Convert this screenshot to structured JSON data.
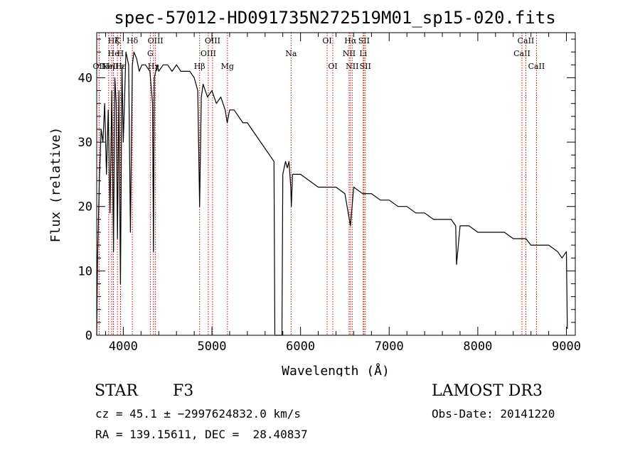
{
  "chart_data": {
    "type": "line",
    "title": "spec-57012-HD091735N272519M01_sp15-020.fits",
    "xlabel": "Wavelength (Å)",
    "ylabel": "Flux (relative)",
    "xlim": [
      3700,
      9100
    ],
    "ylim": [
      0,
      47
    ],
    "xticks": [
      4000,
      5000,
      6000,
      7000,
      8000,
      9000
    ],
    "xtick_labels": [
      "4000",
      "5000",
      "6000",
      "7000",
      "8000",
      "9000"
    ],
    "yticks": [
      0,
      10,
      20,
      30,
      40
    ],
    "ytick_labels": [
      "0",
      "10",
      "20",
      "30",
      "40"
    ],
    "series": [
      {
        "name": "flux",
        "x": [
          3700,
          3710,
          3730,
          3750,
          3770,
          3790,
          3810,
          3830,
          3850,
          3870,
          3889,
          3905,
          3920,
          3934,
          3950,
          3968,
          3985,
          4000,
          4030,
          4060,
          4080,
          4102,
          4120,
          4150,
          4180,
          4210,
          4250,
          4300,
          4330,
          4340,
          4350,
          4383,
          4400,
          4450,
          4500,
          4550,
          4600,
          4650,
          4700,
          4750,
          4800,
          4840,
          4861,
          4880,
          4900,
          4950,
          5000,
          5050,
          5100,
          5150,
          5172,
          5200,
          5250,
          5300,
          5350,
          5400,
          5450,
          5500,
          5550,
          5600,
          5650,
          5700,
          5710,
          5720,
          5760,
          5790,
          5800,
          5830,
          5850,
          5870,
          5890,
          5896,
          5910,
          5950,
          6000,
          6100,
          6200,
          6300,
          6400,
          6500,
          6563,
          6600,
          6700,
          6800,
          6900,
          7000,
          7100,
          7200,
          7300,
          7400,
          7500,
          7600,
          7700,
          7750,
          7760,
          7800,
          7900,
          8000,
          8100,
          8200,
          8300,
          8400,
          8500,
          8542,
          8600,
          8700,
          8800,
          8900,
          8950,
          9000,
          9010
        ],
        "y": [
          0,
          12,
          24,
          32,
          30,
          36,
          25,
          35,
          19,
          38,
          13,
          40,
          36,
          15,
          38,
          8,
          42,
          30,
          44,
          42,
          16,
          42,
          44,
          43,
          41,
          42,
          42,
          41,
          36,
          13,
          40,
          42,
          41,
          42,
          42,
          41,
          42,
          41,
          41,
          41,
          40,
          38,
          20,
          37,
          39,
          37,
          38,
          36,
          37,
          35,
          33,
          35,
          35,
          34,
          33,
          33,
          32,
          31,
          30,
          29,
          28,
          27,
          0,
          0,
          0,
          0,
          25,
          27,
          26,
          27,
          23,
          20,
          25,
          25,
          25,
          24,
          23,
          23,
          23,
          22,
          17,
          23,
          22,
          22,
          21,
          21,
          20,
          20,
          19,
          19,
          18,
          18,
          18,
          17,
          11,
          17,
          17,
          16,
          16,
          16,
          16,
          15,
          15,
          15,
          14,
          14,
          14,
          13,
          12,
          13,
          1
        ]
      }
    ],
    "lines": [
      {
        "name": "OII",
        "x": 3727,
        "level": 3
      },
      {
        "name": "Hη",
        "x": 3835,
        "level": 3
      },
      {
        "name": "Hζ",
        "x": 3889,
        "level": 1
      },
      {
        "name": "He",
        "x": 3889,
        "level": 2
      },
      {
        "name": "NeIII",
        "x": 3869,
        "level": 3
      },
      {
        "name": "K",
        "x": 3934,
        "level": 1
      },
      {
        "name": "H",
        "x": 3968,
        "level": 2
      },
      {
        "name": "Hε",
        "x": 3970,
        "level": 3
      },
      {
        "name": "Hδ",
        "x": 4102,
        "level": 1
      },
      {
        "name": "G",
        "x": 4305,
        "level": 2
      },
      {
        "name": "Hγ",
        "x": 4341,
        "level": 3
      },
      {
        "name": "OIII",
        "x": 4363,
        "level": 1
      },
      {
        "name": "Hβ",
        "x": 4861,
        "level": 3
      },
      {
        "name": "OIII",
        "x": 4959,
        "level": 2
      },
      {
        "name": "OIII",
        "x": 5007,
        "level": 1
      },
      {
        "name": "Mg",
        "x": 5175,
        "level": 3
      },
      {
        "name": "Na",
        "x": 5893,
        "level": 2
      },
      {
        "name": "OI",
        "x": 6300,
        "level": 1
      },
      {
        "name": "OI",
        "x": 6364,
        "level": 3
      },
      {
        "name": "NII",
        "x": 6548,
        "level": 2
      },
      {
        "name": "NII",
        "x": 6583,
        "level": 3
      },
      {
        "name": "Hα",
        "x": 6563,
        "level": 1
      },
      {
        "name": "SII",
        "x": 6716,
        "level": 1
      },
      {
        "name": "SII",
        "x": 6731,
        "level": 3
      },
      {
        "name": "Li",
        "x": 6707,
        "level": 2
      },
      {
        "name": "CaII",
        "x": 8498,
        "level": 2
      },
      {
        "name": "CaII",
        "x": 8542,
        "level": 1
      },
      {
        "name": "CaII",
        "x": 8662,
        "level": 3
      }
    ],
    "colors": {
      "spectrum": "#000000",
      "lines": "#cc0000",
      "axes": "#000000"
    }
  },
  "info": {
    "obj_class": "STAR",
    "subclass": "F3",
    "survey": "LAMOST DR3",
    "cz": "cz = 45.1 ± −2997624832.0 km/s",
    "obs_date": "Obs-Date: 20141220",
    "coords": "RA = 139.15611, DEC =  28.40837"
  }
}
